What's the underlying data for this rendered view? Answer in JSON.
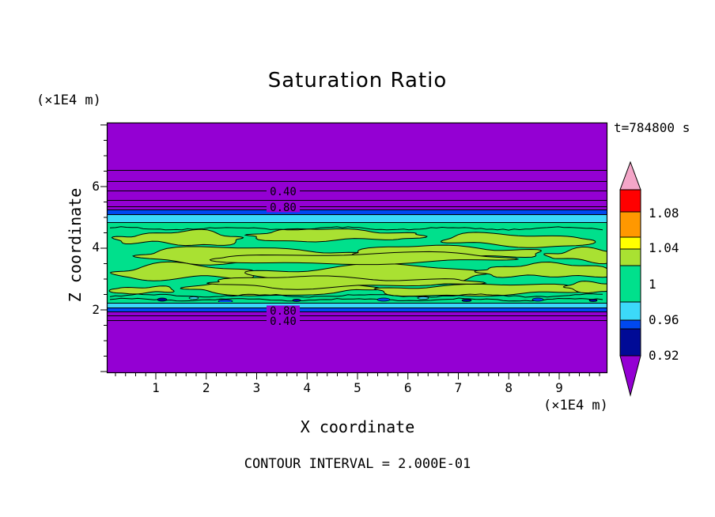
{
  "title": "Saturation Ratio",
  "timestamp": "t=784800 s",
  "footer": "CONTOUR INTERVAL = 2.000E-01",
  "axes": {
    "x_label": "X coordinate",
    "y_label": "Z coordinate",
    "x_unit": "(×1E4 m)",
    "y_unit": "(×1E4 m)",
    "x_ticks": [
      "1",
      "2",
      "3",
      "4",
      "5",
      "6",
      "7",
      "8",
      "9"
    ],
    "y_ticks": [
      "6",
      "4",
      "2"
    ]
  },
  "contour_labels": [
    "0.40",
    "0.80",
    "0.80",
    "0.40"
  ],
  "colorbar": {
    "labels": [
      "1.08",
      "1.04",
      "1",
      "0.96",
      "0.92"
    ],
    "colors": [
      "#F4A6C8",
      "#FF0000",
      "#FF9800",
      "#FFFF00",
      "#A9E132",
      "#00E08C",
      "#3CD9F9",
      "#0048F0",
      "#000A96",
      "#9400D3"
    ]
  },
  "plot_colors": {
    "background_purple": "#9400D3",
    "blue_band": "#0048F0",
    "cyan_band": "#3CD9F9",
    "green_base": "#00E08C",
    "green_light": "#A9E132",
    "navy_band": "#000A96",
    "contour_line": "#000000"
  },
  "chart_data": {
    "type": "heatmap",
    "subtype": "filled-contour-map",
    "title": "Saturation Ratio",
    "xlabel": "X coordinate",
    "ylabel": "Z coordinate",
    "x_unit": "(×1E4 m)",
    "y_unit": "(×1E4 m)",
    "x_ticks": [
      1,
      2,
      3,
      4,
      5,
      6,
      7,
      8,
      9
    ],
    "y_ticks": [
      2,
      4,
      6
    ],
    "x_range_approx": [
      0,
      9.9
    ],
    "y_range_approx": [
      0,
      8
    ],
    "time_annotation": "t=784800 s",
    "contour_interval": 0.2,
    "colorbar": {
      "orientation": "vertical",
      "tick_labels": [
        1.08,
        1.04,
        1,
        0.96,
        0.92
      ],
      "colors_top_to_bottom": [
        "pink",
        "red",
        "orange",
        "yellow",
        "yellow-green",
        "green",
        "cyan",
        "blue",
        "navy",
        "purple"
      ]
    },
    "labeled_contours": [
      {
        "value": 0.4,
        "location": "upper purple region, z ≈ 6.0 ×1E4 m"
      },
      {
        "value": 0.8,
        "location": "upper transition, z ≈ 5.5 ×1E4 m"
      },
      {
        "value": 0.8,
        "location": "lower transition, z ≈ 2.0 ×1E4 m"
      },
      {
        "value": 0.4,
        "location": "lower purple region, z ≈ 1.7 ×1E4 m"
      }
    ],
    "regions_top_to_bottom": [
      {
        "z_span_x1E4_m": [
          5.6,
          8.0
        ],
        "color": "purple",
        "saturation_ratio": "< 0.4"
      },
      {
        "z_span_x1E4_m": [
          5.1,
          5.6
        ],
        "color": "blue to cyan gradient",
        "saturation_ratio": "0.8 - 0.98"
      },
      {
        "z_span_x1E4_m": [
          2.2,
          5.1
        ],
        "color": "green with yellow-green wavy patches and black contour lines",
        "saturation_ratio": "0.98 - 1.04"
      },
      {
        "z_span_x1E4_m": [
          1.9,
          2.2
        ],
        "color": "cyan to blue gradient",
        "saturation_ratio": "0.8 - 0.98"
      },
      {
        "z_span_x1E4_m": [
          0.0,
          1.9
        ],
        "color": "purple",
        "saturation_ratio": "< 0.4"
      }
    ]
  }
}
